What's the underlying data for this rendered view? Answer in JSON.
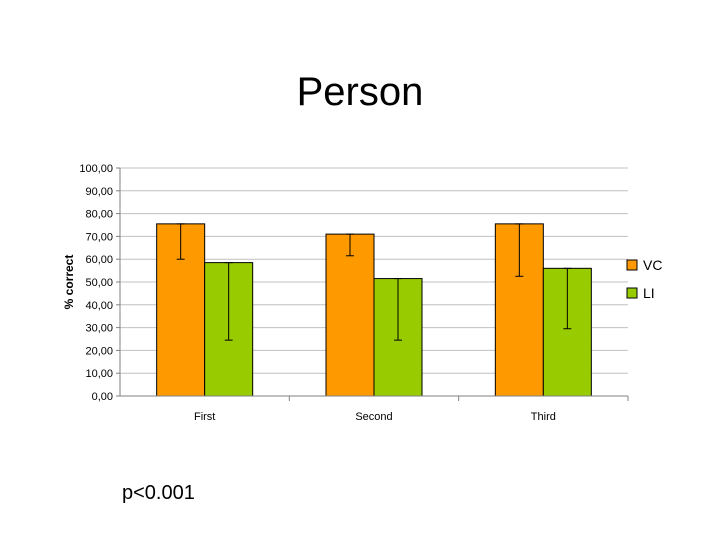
{
  "slide": {
    "title": "Person",
    "footnote": "p<0.001"
  },
  "chart_data": {
    "type": "bar",
    "title": "",
    "xlabel": "",
    "ylabel": "% correct",
    "ylim": [
      0,
      100
    ],
    "ytick_step": 10,
    "ytick_format": "comma-2-decimals",
    "grid": true,
    "legend_position": "right",
    "categories": [
      "First",
      "Second",
      "Third"
    ],
    "series": [
      {
        "name": "VC",
        "color": "#ff9900",
        "values": [
          75.5,
          71.0,
          75.5
        ],
        "error": [
          15.5,
          9.5,
          23.0
        ]
      },
      {
        "name": "LI",
        "color": "#99cc00",
        "values": [
          58.5,
          51.5,
          56.0
        ],
        "error": [
          34.0,
          27.0,
          26.5
        ]
      }
    ]
  }
}
